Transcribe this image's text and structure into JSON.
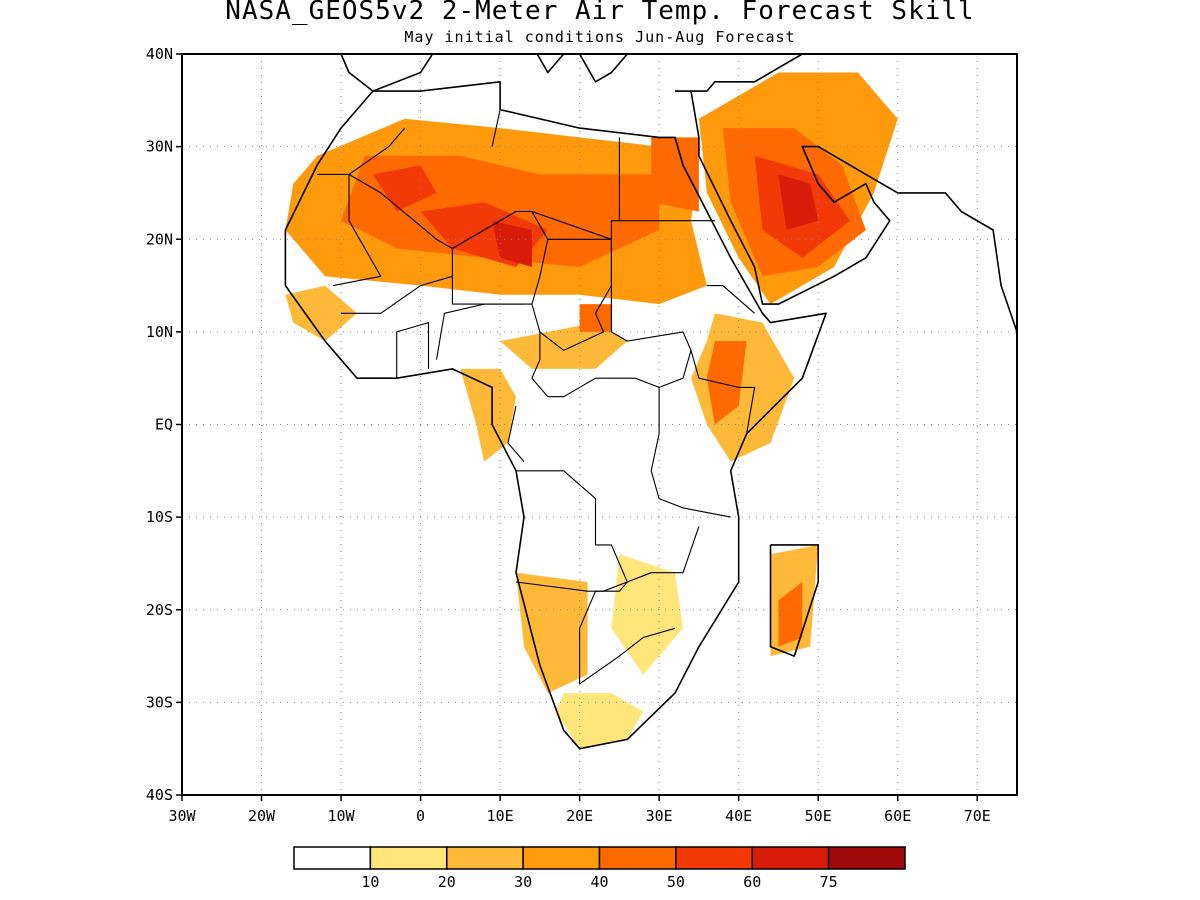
{
  "title": "NASA_GEOS5v2 2-Meter Air Temp. Forecast Skill",
  "subtitle": "May initial conditions  Jun-Aug Forecast",
  "map": {
    "lon_range": [
      -30,
      75
    ],
    "lat_range": [
      -40,
      40
    ],
    "lat_ticks": [
      {
        "lat": 40,
        "label": "40N"
      },
      {
        "lat": 30,
        "label": "30N"
      },
      {
        "lat": 20,
        "label": "20N"
      },
      {
        "lat": 10,
        "label": "10N"
      },
      {
        "lat": 0,
        "label": "EQ"
      },
      {
        "lat": -10,
        "label": "10S"
      },
      {
        "lat": -20,
        "label": "20S"
      },
      {
        "lat": -30,
        "label": "30S"
      },
      {
        "lat": -40,
        "label": "40S"
      }
    ],
    "lon_ticks": [
      {
        "lon": -30,
        "label": "30W"
      },
      {
        "lon": -20,
        "label": "20W"
      },
      {
        "lon": -10,
        "label": "10W"
      },
      {
        "lon": 0,
        "label": "0"
      },
      {
        "lon": 10,
        "label": "10E"
      },
      {
        "lon": 20,
        "label": "20E"
      },
      {
        "lon": 30,
        "label": "30E"
      },
      {
        "lon": 40,
        "label": "40E"
      },
      {
        "lon": 50,
        "label": "50E"
      },
      {
        "lon": 60,
        "label": "60E"
      },
      {
        "lon": 70,
        "label": "70E"
      }
    ],
    "grid": true
  },
  "colorbar": {
    "colors": [
      "#ffffff",
      "#ffe57a",
      "#ffb938",
      "#ff9a0c",
      "#ff6a00",
      "#f23a06",
      "#d81c0a",
      "#a00a0a"
    ],
    "labels": [
      "10",
      "20",
      "30",
      "40",
      "50",
      "60",
      "75"
    ]
  },
  "skill_regions": [
    {
      "level": 3,
      "polygon": [
        [
          -13,
          29
        ],
        [
          -2,
          33
        ],
        [
          10,
          32
        ],
        [
          20,
          31
        ],
        [
          30,
          30
        ],
        [
          35,
          28
        ],
        [
          34,
          22
        ],
        [
          36,
          15
        ],
        [
          30,
          13
        ],
        [
          20,
          14
        ],
        [
          10,
          14
        ],
        [
          0,
          15
        ],
        [
          -12,
          16
        ],
        [
          -17,
          21
        ],
        [
          -16,
          26
        ]
      ]
    },
    {
      "level": 3,
      "polygon": [
        [
          35,
          33
        ],
        [
          45,
          38
        ],
        [
          55,
          38
        ],
        [
          60,
          33
        ],
        [
          57,
          25
        ],
        [
          52,
          17
        ],
        [
          44,
          13
        ],
        [
          40,
          18
        ],
        [
          36,
          25
        ]
      ]
    },
    {
      "level": 2,
      "polygon": [
        [
          37,
          12
        ],
        [
          43,
          11
        ],
        [
          47,
          5
        ],
        [
          44,
          -2
        ],
        [
          39,
          -4
        ],
        [
          36,
          0
        ],
        [
          34,
          5
        ],
        [
          36,
          9
        ]
      ]
    },
    {
      "level": 2,
      "polygon": [
        [
          12,
          -16
        ],
        [
          21,
          -17
        ],
        [
          21,
          -27
        ],
        [
          16,
          -29
        ],
        [
          13,
          -24
        ]
      ]
    },
    {
      "level": 2,
      "polygon": [
        [
          44,
          -14
        ],
        [
          50,
          -13
        ],
        [
          49,
          -24
        ],
        [
          44,
          -25
        ]
      ]
    },
    {
      "level": 1,
      "polygon": [
        [
          25,
          -14
        ],
        [
          32,
          -16
        ],
        [
          33,
          -22
        ],
        [
          28,
          -27
        ],
        [
          24,
          -22
        ]
      ]
    },
    {
      "level": 1,
      "polygon": [
        [
          17,
          -31
        ],
        [
          20,
          -35
        ],
        [
          26,
          -34
        ],
        [
          28,
          -31
        ],
        [
          24,
          -29
        ],
        [
          18,
          -29
        ]
      ]
    },
    {
      "level": 2,
      "polygon": [
        [
          -17,
          14
        ],
        [
          -12,
          15
        ],
        [
          -8,
          12
        ],
        [
          -12,
          9
        ],
        [
          -16,
          11
        ]
      ]
    },
    {
      "level": 2,
      "polygon": [
        [
          5,
          6
        ],
        [
          10,
          6
        ],
        [
          12,
          3
        ],
        [
          11,
          -2
        ],
        [
          8,
          -4
        ],
        [
          7,
          0
        ]
      ]
    },
    {
      "level": 2,
      "polygon": [
        [
          10,
          9
        ],
        [
          22,
          11
        ],
        [
          26,
          9
        ],
        [
          22,
          6
        ],
        [
          14,
          6
        ]
      ]
    },
    {
      "level": 4,
      "polygon": [
        [
          -7,
          29
        ],
        [
          5,
          29
        ],
        [
          15,
          27
        ],
        [
          22,
          27
        ],
        [
          30,
          27
        ],
        [
          30,
          21
        ],
        [
          20,
          17
        ],
        [
          8,
          18
        ],
        [
          -3,
          19
        ],
        [
          -10,
          22
        ]
      ]
    },
    {
      "level": 4,
      "polygon": [
        [
          38,
          32
        ],
        [
          47,
          32
        ],
        [
          53,
          28
        ],
        [
          56,
          21
        ],
        [
          50,
          17
        ],
        [
          43,
          16
        ],
        [
          39,
          24
        ]
      ]
    },
    {
      "level": 4,
      "polygon": [
        [
          29,
          31
        ],
        [
          35,
          31
        ],
        [
          35,
          23
        ],
        [
          29,
          24
        ]
      ]
    },
    {
      "level": 4,
      "polygon": [
        [
          37,
          9
        ],
        [
          41,
          9
        ],
        [
          40,
          2
        ],
        [
          37,
          0
        ],
        [
          36,
          5
        ]
      ]
    },
    {
      "level": 4,
      "polygon": [
        [
          45,
          -19
        ],
        [
          48,
          -17
        ],
        [
          48,
          -23
        ],
        [
          45,
          -24
        ]
      ]
    },
    {
      "level": 4,
      "polygon": [
        [
          20,
          13
        ],
        [
          24,
          13
        ],
        [
          24,
          10
        ],
        [
          20,
          10
        ]
      ]
    },
    {
      "level": 5,
      "polygon": [
        [
          0,
          23
        ],
        [
          8,
          24
        ],
        [
          16,
          21
        ],
        [
          12,
          17
        ],
        [
          4,
          19
        ]
      ]
    },
    {
      "level": 5,
      "polygon": [
        [
          42,
          29
        ],
        [
          50,
          27
        ],
        [
          54,
          22
        ],
        [
          48,
          18
        ],
        [
          43,
          21
        ]
      ]
    },
    {
      "level": 5,
      "polygon": [
        [
          -6,
          27
        ],
        [
          0,
          28
        ],
        [
          2,
          25
        ],
        [
          -3,
          23
        ]
      ]
    },
    {
      "level": 6,
      "polygon": [
        [
          9,
          22
        ],
        [
          14,
          21
        ],
        [
          14,
          17
        ],
        [
          10,
          18
        ]
      ]
    },
    {
      "level": 6,
      "polygon": [
        [
          45,
          27
        ],
        [
          49,
          26
        ],
        [
          50,
          22
        ],
        [
          46,
          21
        ]
      ]
    }
  ],
  "coastlines": [
    [
      [
        -6,
        36
      ],
      [
        -10,
        32
      ],
      [
        -13,
        28
      ],
      [
        -17,
        21
      ],
      [
        -17,
        15
      ],
      [
        -12,
        9
      ],
      [
        -8,
        5
      ],
      [
        -3,
        5
      ],
      [
        4,
        6
      ],
      [
        9,
        4
      ],
      [
        9,
        0
      ],
      [
        12,
        -5
      ],
      [
        13,
        -10
      ],
      [
        12,
        -16
      ],
      [
        15,
        -26
      ],
      [
        18,
        -33
      ],
      [
        20,
        -35
      ],
      [
        26,
        -34
      ],
      [
        32,
        -29
      ],
      [
        35,
        -24
      ],
      [
        40,
        -17
      ],
      [
        40,
        -10
      ],
      [
        39,
        -5
      ],
      [
        41,
        -1
      ],
      [
        48,
        5
      ],
      [
        51,
        12
      ],
      [
        44,
        11
      ],
      [
        43,
        12
      ],
      [
        39,
        18
      ],
      [
        36,
        23
      ],
      [
        33,
        28
      ],
      [
        32,
        31
      ],
      [
        30,
        31
      ],
      [
        20,
        32
      ],
      [
        10,
        34
      ],
      [
        10,
        37
      ],
      [
        0,
        36
      ],
      [
        -6,
        36
      ]
    ],
    [
      [
        44,
        -13
      ],
      [
        50,
        -13
      ],
      [
        50,
        -17
      ],
      [
        47,
        -25
      ],
      [
        44,
        -24
      ],
      [
        44,
        -18
      ],
      [
        44,
        -13
      ]
    ],
    [
      [
        34,
        36
      ],
      [
        35,
        31
      ],
      [
        35,
        29
      ],
      [
        39,
        22
      ],
      [
        42,
        17
      ],
      [
        43,
        13
      ],
      [
        45,
        13
      ],
      [
        52,
        16
      ],
      [
        56,
        18
      ],
      [
        59,
        22
      ],
      [
        57,
        24
      ],
      [
        56,
        26
      ],
      [
        52,
        24
      ],
      [
        50,
        26
      ],
      [
        48,
        30
      ],
      [
        50,
        30
      ],
      [
        56,
        27
      ],
      [
        60,
        25
      ],
      [
        66,
        25
      ],
      [
        68,
        23
      ],
      [
        72,
        21
      ],
      [
        73,
        15
      ],
      [
        75,
        10
      ]
    ],
    [
      [
        32,
        36
      ],
      [
        36,
        36
      ],
      [
        37,
        37
      ],
      [
        42,
        37
      ],
      [
        48,
        40
      ]
    ],
    [
      [
        -10,
        40
      ],
      [
        -9,
        38
      ],
      [
        -6,
        36
      ],
      [
        0,
        38
      ],
      [
        3,
        42
      ]
    ],
    [
      [
        12,
        44
      ],
      [
        14,
        41
      ],
      [
        16,
        38
      ],
      [
        18,
        40
      ],
      [
        16,
        42
      ]
    ],
    [
      [
        20,
        40
      ],
      [
        22,
        37
      ],
      [
        24,
        38
      ],
      [
        26,
        40
      ]
    ]
  ],
  "borders": [
    [
      [
        -13,
        27
      ],
      [
        -9,
        27
      ],
      [
        -9,
        22
      ],
      [
        -5,
        16
      ],
      [
        -11,
        15
      ]
    ],
    [
      [
        -9,
        27
      ],
      [
        -4,
        30
      ],
      [
        -2,
        32
      ]
    ],
    [
      [
        -9,
        27
      ],
      [
        -5,
        25
      ],
      [
        2,
        20
      ],
      [
        4,
        19
      ],
      [
        12,
        23
      ],
      [
        14,
        23
      ],
      [
        24,
        20
      ],
      [
        24,
        22
      ],
      [
        25,
        22
      ],
      [
        25,
        31
      ]
    ],
    [
      [
        4,
        19
      ],
      [
        4,
        16
      ],
      [
        0,
        15
      ],
      [
        -5,
        12
      ],
      [
        -10,
        12
      ]
    ],
    [
      [
        12,
        23
      ],
      [
        14,
        23
      ],
      [
        16,
        20
      ],
      [
        15,
        16
      ],
      [
        14,
        13
      ],
      [
        10,
        13
      ],
      [
        4,
        13
      ],
      [
        4,
        16
      ]
    ],
    [
      [
        16,
        20
      ],
      [
        24,
        20
      ],
      [
        24,
        15
      ],
      [
        22,
        12
      ],
      [
        23,
        10
      ],
      [
        18,
        8
      ],
      [
        15,
        10
      ],
      [
        14,
        13
      ]
    ],
    [
      [
        9,
        30
      ],
      [
        10,
        34
      ]
    ],
    [
      [
        25,
        22
      ],
      [
        37,
        22
      ]
    ],
    [
      [
        24,
        20
      ],
      [
        24,
        10
      ],
      [
        26,
        9
      ],
      [
        33,
        10
      ],
      [
        34,
        8
      ],
      [
        33,
        5
      ],
      [
        30,
        4
      ]
    ],
    [
      [
        15,
        10
      ],
      [
        15,
        7
      ],
      [
        14,
        5
      ],
      [
        16,
        3
      ],
      [
        18,
        3
      ],
      [
        22,
        5
      ],
      [
        27,
        5
      ],
      [
        30,
        4
      ]
    ],
    [
      [
        36,
        15
      ],
      [
        38,
        15
      ],
      [
        42,
        12
      ]
    ],
    [
      [
        34,
        8
      ],
      [
        35,
        5
      ],
      [
        40,
        4
      ],
      [
        42,
        4
      ],
      [
        41,
        -1
      ]
    ],
    [
      [
        30,
        4
      ],
      [
        30,
        -1
      ],
      [
        29,
        -5
      ],
      [
        30,
        -8
      ],
      [
        33,
        -9
      ],
      [
        39,
        -10
      ]
    ],
    [
      [
        12,
        -5
      ],
      [
        18,
        -5
      ],
      [
        22,
        -8
      ],
      [
        22,
        -13
      ],
      [
        24,
        -13
      ],
      [
        26,
        -17
      ],
      [
        25,
        -18
      ],
      [
        22,
        -18
      ],
      [
        20,
        -22
      ],
      [
        20,
        -28
      ]
    ],
    [
      [
        12,
        -17
      ],
      [
        21,
        -18
      ],
      [
        23,
        -18
      ],
      [
        29,
        -16
      ],
      [
        33,
        -16
      ],
      [
        35,
        -11
      ]
    ],
    [
      [
        20,
        -28
      ],
      [
        25,
        -25
      ],
      [
        28,
        -23
      ],
      [
        32,
        -22
      ]
    ],
    [
      [
        12,
        2
      ],
      [
        11,
        -2
      ],
      [
        13,
        -4
      ]
    ],
    [
      [
        -3,
        5
      ],
      [
        -3,
        10
      ],
      [
        1,
        11
      ],
      [
        1,
        6
      ]
    ],
    [
      [
        2,
        7
      ],
      [
        3,
        12
      ],
      [
        8,
        13
      ],
      [
        13,
        13
      ]
    ]
  ]
}
